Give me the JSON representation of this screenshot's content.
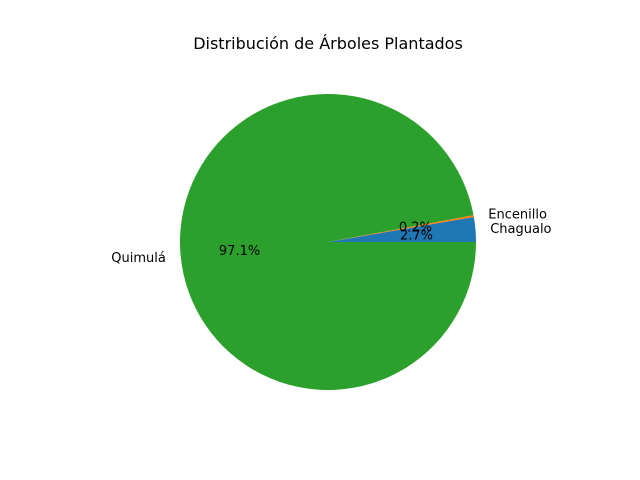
{
  "chart_data": {
    "type": "pie",
    "title": "Distribución de Árboles Plantados",
    "labels": [
      "Chagualo",
      "Encenillo",
      "Quimulá"
    ],
    "values": [
      2.7,
      0.2,
      97.1
    ],
    "percent_labels": [
      "2.7%",
      "0.2%",
      "97.1%"
    ],
    "colors": [
      "#1f77b4",
      "#ff7f0e",
      "#2ca02c"
    ],
    "start_angle_deg": 0,
    "direction": "counterclockwise",
    "legend": "none"
  }
}
